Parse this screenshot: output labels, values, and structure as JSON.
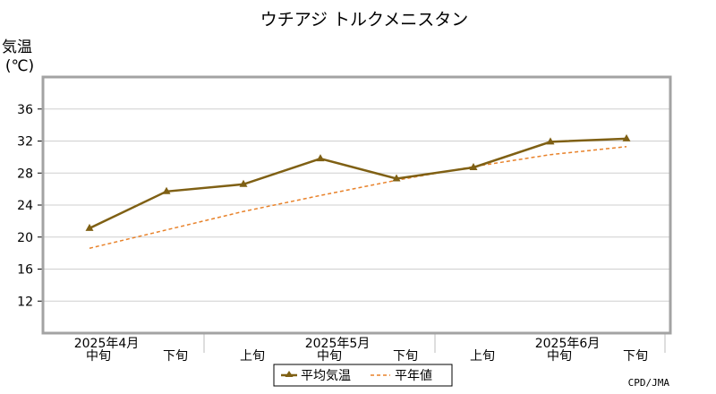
{
  "chart_data": {
    "type": "line",
    "title": "ウチアジ トルクメニスタン",
    "ylabel_line1": "気温",
    "ylabel_line2": "(℃)",
    "ylim": [
      8,
      40
    ],
    "y_ticks": [
      12,
      16,
      20,
      24,
      28,
      32,
      36
    ],
    "grid": true,
    "x_labels": [
      "中旬",
      "下旬",
      "上旬",
      "中旬",
      "下旬",
      "上旬",
      "中旬",
      "下旬"
    ],
    "month_labels": [
      {
        "label": "2025年4月",
        "index": 0
      },
      {
        "label": "2025年5月",
        "index": 3
      },
      {
        "label": "2025年6月",
        "index": 6
      }
    ],
    "series": [
      {
        "name": "平均気温",
        "color": "#7f6014",
        "style": "solid",
        "marker": "triangle",
        "values": [
          21.1,
          25.7,
          26.6,
          29.8,
          27.3,
          28.7,
          31.9,
          32.3
        ]
      },
      {
        "name": "平年値",
        "color": "#e8822a",
        "style": "dashed",
        "values": [
          18.6,
          20.9,
          23.2,
          25.2,
          27.1,
          28.8,
          30.3,
          31.3
        ]
      }
    ],
    "legend_position": "bottom",
    "credit": "CPD/JMA"
  }
}
